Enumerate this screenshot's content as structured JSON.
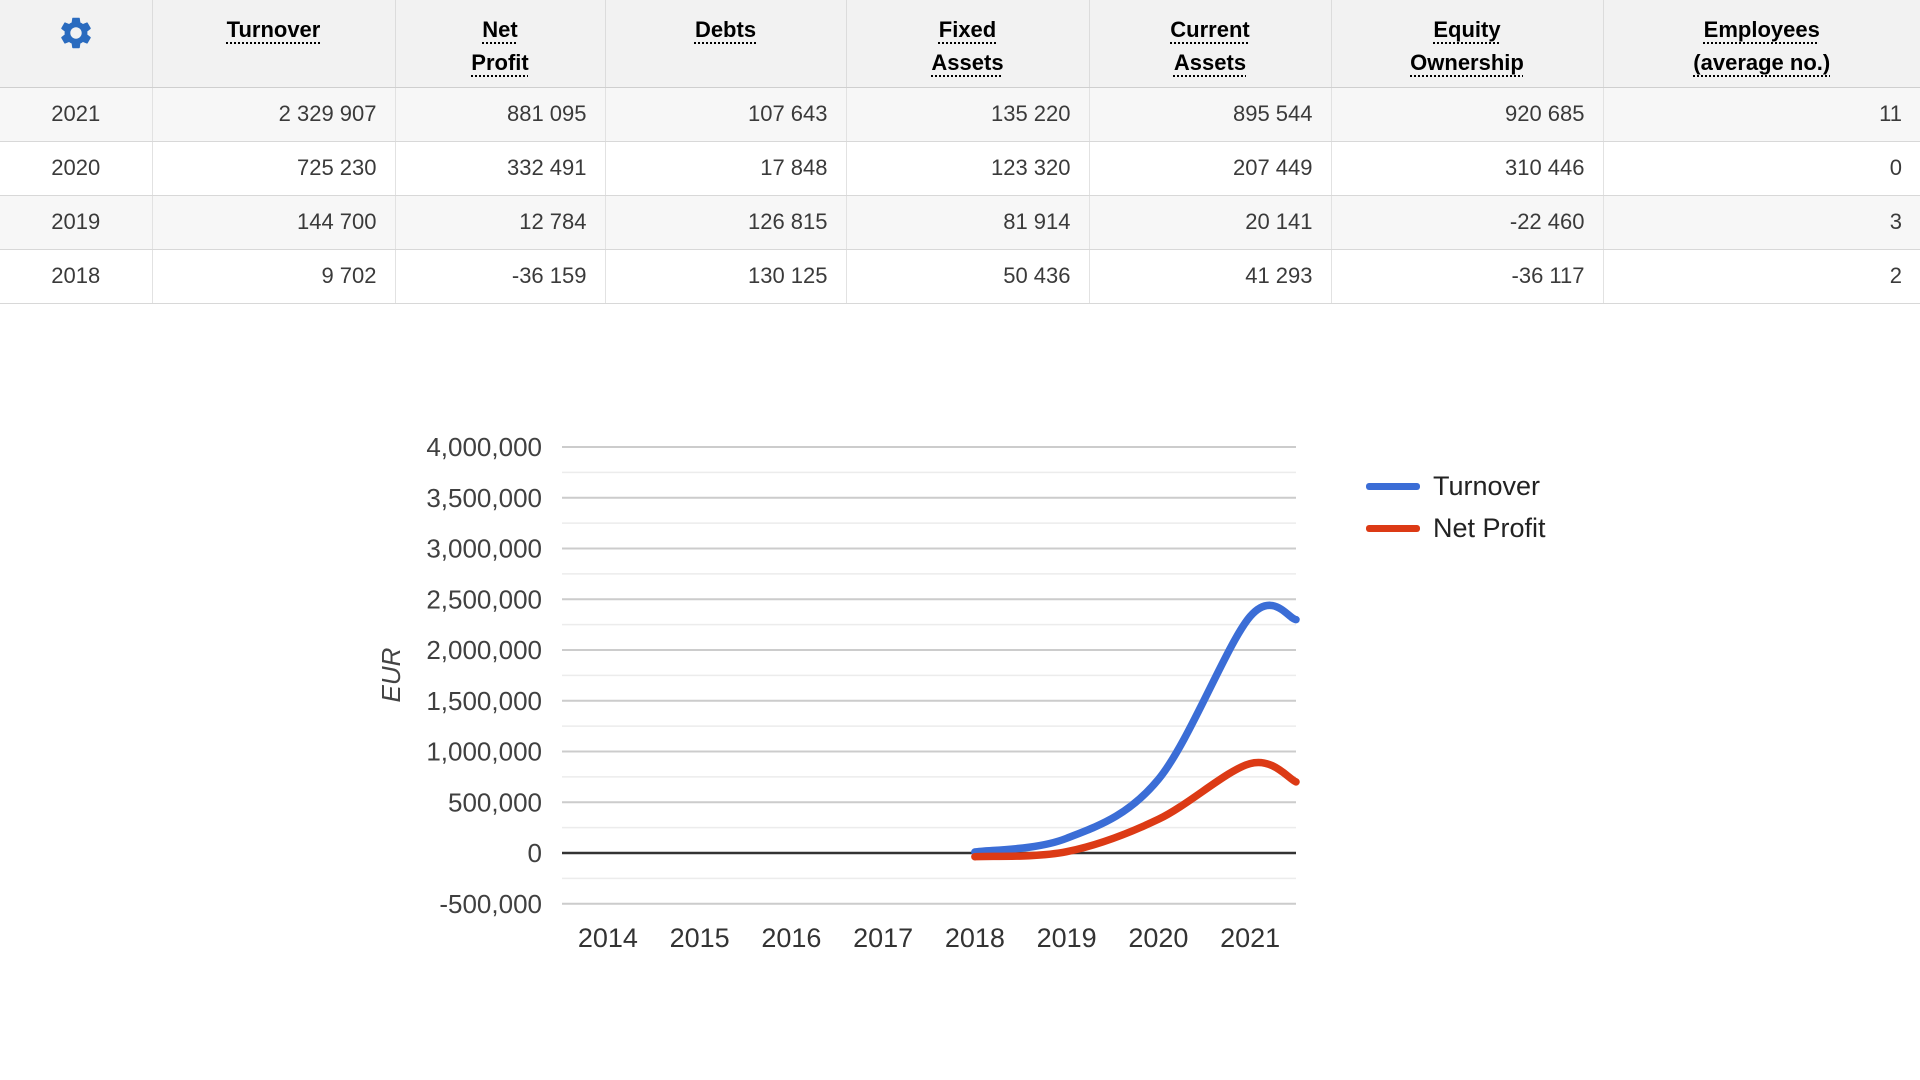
{
  "table": {
    "settings_icon": "gear",
    "settings_icon_color": "#2a6bbf",
    "columns": [
      "Turnover",
      "Net\nProfit",
      "Debts",
      "Fixed\nAssets",
      "Current\nAssets",
      "Equity\nOwnership",
      "Employees\n(average no.)"
    ],
    "rows": [
      {
        "year": "2021",
        "values": [
          "2 329 907",
          "881 095",
          "107 643",
          "135 220",
          "895 544",
          "920 685",
          "11"
        ]
      },
      {
        "year": "2020",
        "values": [
          "725 230",
          "332 491",
          "17 848",
          "123 320",
          "207 449",
          "310 446",
          "0"
        ]
      },
      {
        "year": "2019",
        "values": [
          "144 700",
          "12 784",
          "126 815",
          "81 914",
          "20 141",
          "-22 460",
          "3"
        ]
      },
      {
        "year": "2018",
        "values": [
          "9 702",
          "-36 159",
          "130 125",
          "50 436",
          "41 293",
          "-36 117",
          "2"
        ]
      }
    ]
  },
  "chart_data": {
    "type": "line",
    "title": "",
    "xlabel": "",
    "ylabel": "EUR",
    "x_categories": [
      "2014",
      "2015",
      "2016",
      "2017",
      "2018",
      "2019",
      "2020",
      "2021"
    ],
    "ylim": [
      -500000,
      4000000
    ],
    "y_tick_step": 500000,
    "y_minor_step": 250000,
    "y_ticks": [
      "-500,000",
      "0",
      "500,000",
      "1,000,000",
      "1,500,000",
      "2,000,000",
      "2,500,000",
      "3,000,000",
      "3,500,000",
      "4,000,000"
    ],
    "grid": true,
    "smooth": true,
    "legend_position": "right",
    "series": [
      {
        "name": "Turnover",
        "color": "#3b6dd6",
        "x": [
          "2018",
          "2019",
          "2020",
          "2021"
        ],
        "values": [
          9702,
          144700,
          725230,
          2329907
        ],
        "value_at_plot_edge": 2300000
      },
      {
        "name": "Net Profit",
        "color": "#dc3a15",
        "x": [
          "2018",
          "2019",
          "2020",
          "2021"
        ],
        "values": [
          -36159,
          12784,
          332491,
          881095
        ],
        "value_at_plot_edge": 700000
      }
    ]
  }
}
